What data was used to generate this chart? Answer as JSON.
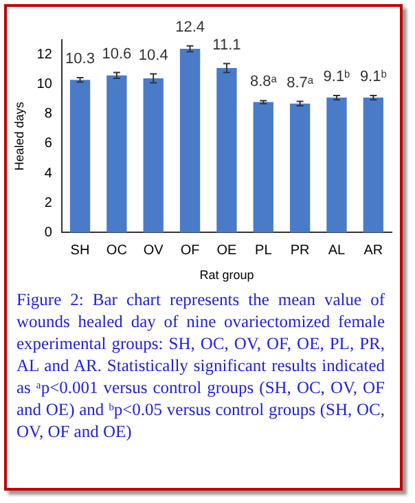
{
  "chart_data": {
    "type": "bar",
    "xlabel": "Rat group",
    "ylabel": "Healed days",
    "categories": [
      "SH",
      "OC",
      "OV",
      "OF",
      "OE",
      "PL",
      "PR",
      "AL",
      "AR"
    ],
    "values": [
      10.3,
      10.6,
      10.4,
      12.4,
      11.1,
      8.8,
      8.7,
      9.1,
      9.1
    ],
    "errors": [
      0.15,
      0.2,
      0.3,
      0.2,
      0.3,
      0.1,
      0.15,
      0.15,
      0.15
    ],
    "value_labels": [
      "10.3",
      "10.6",
      "10.4",
      "12.4",
      "11.1",
      "8.8ᵃ",
      "8.7ᵃ",
      "9.1ᵇ",
      "9.1ᵇ"
    ],
    "color": "#4a7bc8",
    "ylim": [
      0,
      13
    ],
    "yticks": [
      0,
      2,
      4,
      6,
      8,
      10,
      12
    ],
    "grid": false,
    "annotations": [
      "Figure 2: Bar chart represents the mean value of wounds healed day of nine ovariectomized female experimental groups: SH, OC, OV, OF, OE, PL, PR, AL and AR. Statistically significant results indicated as ᵃp<0.001 versus control groups (SH, OC, OV, OF and OE) and ᵇp<0.05 versus control groups (SH, OC, OV, OF and OE)"
    ]
  }
}
